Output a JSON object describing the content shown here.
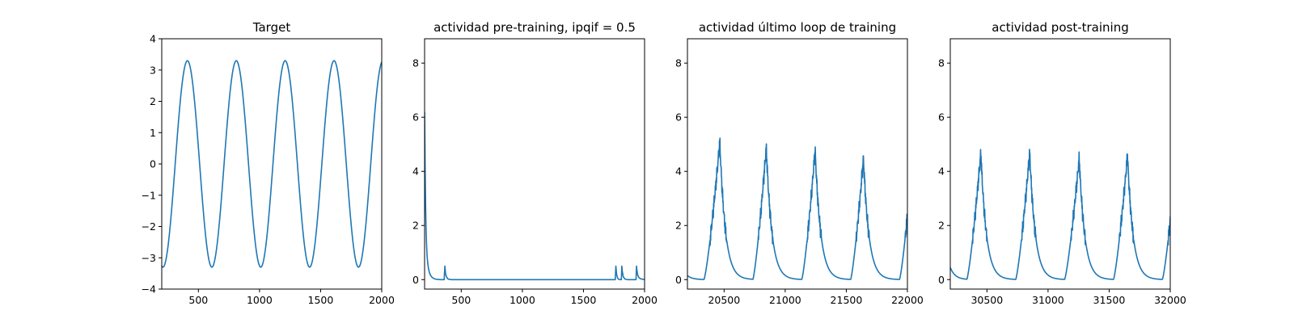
{
  "colors": {
    "series": "#1f77b4"
  },
  "chart_data": [
    {
      "type": "line",
      "title": "Target",
      "xlim": [
        200,
        2000
      ],
      "ylim": [
        -4,
        4
      ],
      "xticks": [
        500,
        1000,
        1500,
        2000
      ],
      "yticks": [
        -4,
        -3,
        -2,
        -1,
        0,
        1,
        2,
        3,
        4
      ],
      "series": [
        {
          "kind": "sine",
          "amplitude": 3.3,
          "period": 400,
          "peak_x": 410,
          "x_start": 200,
          "x_end": 2000,
          "step": 5
        }
      ]
    },
    {
      "type": "line",
      "title": "actividad pre-training, ipqif = 0.5",
      "xlim": [
        200,
        2000
      ],
      "ylim": [
        -0.35,
        8.9
      ],
      "xticks": [
        500,
        1000,
        1500,
        2000
      ],
      "yticks": [
        0,
        2,
        4,
        6,
        8
      ],
      "series": [
        {
          "kind": "points",
          "x": [
            200,
            204,
            208,
            212,
            216,
            220,
            226,
            232,
            240,
            250,
            262,
            280,
            300,
            330,
            360,
            366,
            368,
            372,
            380,
            390,
            400,
            420,
            1760,
            1765,
            1767,
            1771,
            1778,
            1785,
            1800,
            1810,
            1814,
            1818,
            1826,
            1840,
            1860,
            1930,
            1934,
            1936,
            1942,
            1950,
            1960,
            1975,
            2000
          ],
          "y": [
            6.2,
            4.2,
            2.8,
            1.9,
            1.3,
            0.9,
            0.6,
            0.4,
            0.25,
            0.15,
            0.08,
            0.03,
            0.01,
            0.0,
            0.0,
            0.5,
            0.4,
            0.2,
            0.1,
            0.03,
            0.01,
            0.0,
            0.0,
            0.5,
            0.4,
            0.2,
            0.08,
            0.02,
            0.0,
            0.0,
            0.5,
            0.3,
            0.1,
            0.02,
            0.0,
            0.0,
            0.5,
            0.4,
            0.2,
            0.1,
            0.05,
            0.02,
            0.0
          ]
        }
      ]
    },
    {
      "type": "line",
      "title": "actividad último loop de training",
      "xlim": [
        20200,
        22000
      ],
      "ylim": [
        -0.35,
        8.9
      ],
      "xticks": [
        20500,
        21000,
        21500,
        22000
      ],
      "yticks": [
        0,
        2,
        4,
        6,
        8
      ],
      "series": [
        {
          "kind": "pulses",
          "x_start": 20200,
          "x_end": 22000,
          "initial": 0.15,
          "pulses": [
            {
              "start": 20335,
              "peak": 20465,
              "height": 5.1
            },
            {
              "start": 20735,
              "peak": 20845,
              "height": 4.9
            },
            {
              "start": 21135,
              "peak": 21245,
              "height": 4.8
            },
            {
              "start": 21535,
              "peak": 21640,
              "height": 4.5
            },
            {
              "start": 21935,
              "peak": 22045,
              "height": 4.7
            }
          ]
        }
      ]
    },
    {
      "type": "line",
      "title": "actividad post-training",
      "xlim": [
        30200,
        32000
      ],
      "ylim": [
        -0.35,
        8.9
      ],
      "xticks": [
        30500,
        31000,
        31500,
        32000
      ],
      "yticks": [
        0,
        2,
        4,
        6,
        8
      ],
      "series": [
        {
          "kind": "pulses",
          "x_start": 30200,
          "x_end": 32000,
          "initial": 0.45,
          "pulses": [
            {
              "start": 30335,
              "peak": 30450,
              "height": 4.7
            },
            {
              "start": 30735,
              "peak": 30850,
              "height": 4.7
            },
            {
              "start": 31135,
              "peak": 31255,
              "height": 4.5
            },
            {
              "start": 31535,
              "peak": 31650,
              "height": 4.6
            },
            {
              "start": 31935,
              "peak": 32050,
              "height": 4.6
            }
          ]
        }
      ]
    }
  ]
}
